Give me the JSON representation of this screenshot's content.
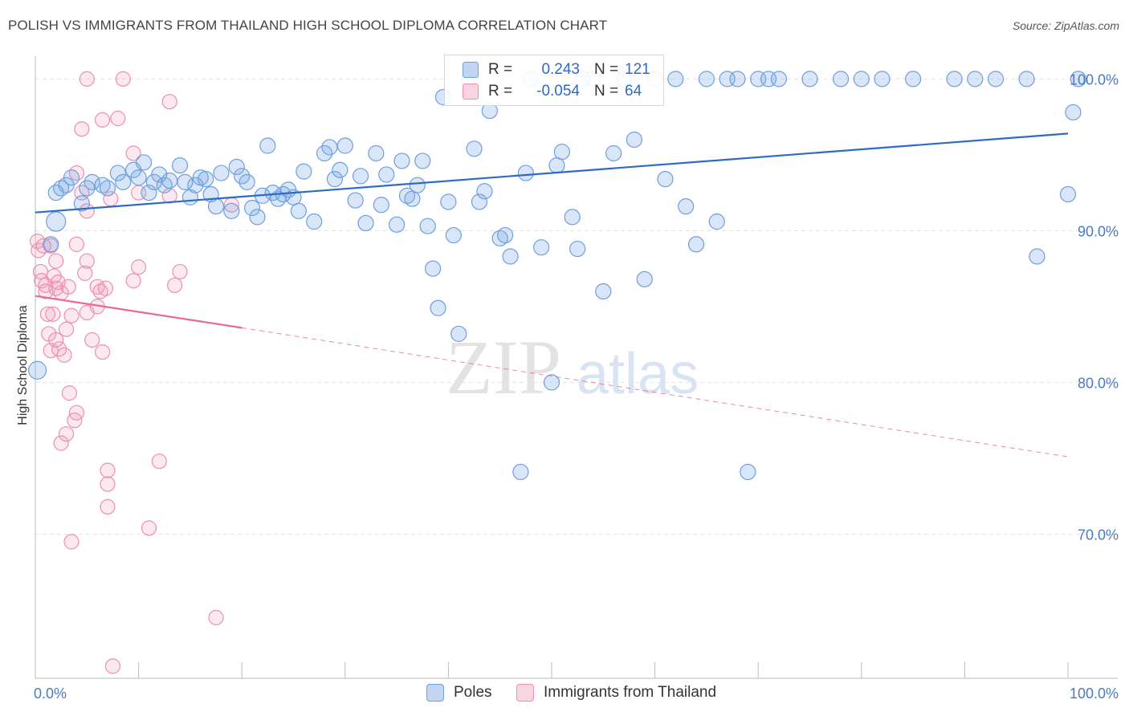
{
  "title": "POLISH VS IMMIGRANTS FROM THAILAND HIGH SCHOOL DIPLOMA CORRELATION CHART",
  "source": "Source: ZipAtlas.com",
  "watermark": {
    "zip": "ZIP",
    "atlas": "atlas"
  },
  "colors": {
    "poles_fill": "rgba(120,165,230,0.28)",
    "poles_stroke": "#6e9fdd",
    "poles_line": "#2f6ac4",
    "thai_fill": "rgba(240,150,180,0.22)",
    "thai_stroke": "#ec8fb0",
    "thai_line": "#e5699a",
    "tick_label": "#4a7cc1",
    "grid": "#e3e3e3"
  },
  "legend": {
    "rows": [
      {
        "r_label": "R =",
        "r_value": "0.243",
        "n_label": "N =",
        "n_value": "121"
      },
      {
        "r_label": "R =",
        "r_value": "-0.054",
        "n_label": "N =",
        "n_value": "64"
      }
    ]
  },
  "chart_data": {
    "type": "scatter",
    "title": "POLISH VS IMMIGRANTS FROM THAILAND HIGH SCHOOL DIPLOMA CORRELATION CHART",
    "ylabel": "High School Diploma",
    "xlabel": "",
    "xlim": [
      0,
      100
    ],
    "ylim": [
      60.5,
      101.5
    ],
    "y_ticks": [
      70,
      80,
      90,
      100
    ],
    "y_tick_labels": [
      "70.0%",
      "80.0%",
      "90.0%",
      "100.0%"
    ],
    "x_tick_labels": [
      "0.0%",
      "100.0%"
    ],
    "legend_position": "top-center",
    "grid": true,
    "series": [
      {
        "name": "Poles",
        "trend": {
          "x": [
            0,
            100
          ],
          "y": [
            91.2,
            96.4
          ]
        },
        "points": [
          [
            0.2,
            80.8
          ],
          [
            1.5,
            89.1
          ],
          [
            2,
            90.6
          ],
          [
            2,
            92.5
          ],
          [
            2.5,
            92.8
          ],
          [
            3,
            93.0
          ],
          [
            3.5,
            93.5
          ],
          [
            4.5,
            91.8
          ],
          [
            5,
            92.8
          ],
          [
            5.5,
            93.2
          ],
          [
            6.5,
            93.0
          ],
          [
            7,
            92.8
          ],
          [
            8,
            93.8
          ],
          [
            8.5,
            93.2
          ],
          [
            9.5,
            94.0
          ],
          [
            10,
            93.5
          ],
          [
            10.5,
            94.5
          ],
          [
            11,
            92.5
          ],
          [
            11.5,
            93.2
          ],
          [
            12,
            93.7
          ],
          [
            12.5,
            93.0
          ],
          [
            13,
            93.3
          ],
          [
            14,
            94.3
          ],
          [
            14.5,
            93.2
          ],
          [
            15,
            92.2
          ],
          [
            15.5,
            93.0
          ],
          [
            16,
            93.5
          ],
          [
            16.5,
            93.4
          ],
          [
            17,
            92.4
          ],
          [
            17.5,
            91.6
          ],
          [
            18,
            93.8
          ],
          [
            19,
            91.3
          ],
          [
            19.5,
            94.2
          ],
          [
            20,
            93.6
          ],
          [
            20.5,
            93.2
          ],
          [
            21,
            91.5
          ],
          [
            21.5,
            90.9
          ],
          [
            22,
            92.3
          ],
          [
            22.5,
            95.6
          ],
          [
            23,
            92.5
          ],
          [
            23.5,
            92.1
          ],
          [
            24,
            92.4
          ],
          [
            24.5,
            92.7
          ],
          [
            25,
            92.2
          ],
          [
            25.5,
            91.3
          ],
          [
            26,
            93.9
          ],
          [
            27,
            90.6
          ],
          [
            28,
            95.1
          ],
          [
            28.5,
            95.5
          ],
          [
            29,
            93.4
          ],
          [
            29.5,
            94.0
          ],
          [
            30,
            95.6
          ],
          [
            31,
            92.0
          ],
          [
            31.5,
            93.6
          ],
          [
            32,
            90.5
          ],
          [
            33,
            95.1
          ],
          [
            33.5,
            91.7
          ],
          [
            34,
            93.7
          ],
          [
            35,
            90.4
          ],
          [
            35.5,
            94.6
          ],
          [
            36,
            92.3
          ],
          [
            36.5,
            92.1
          ],
          [
            37,
            93.0
          ],
          [
            37.5,
            94.6
          ],
          [
            38,
            90.3
          ],
          [
            38.5,
            87.5
          ],
          [
            39,
            84.9
          ],
          [
            39.5,
            98.8
          ],
          [
            40,
            91.9
          ],
          [
            40.5,
            89.7
          ],
          [
            41,
            83.2
          ],
          [
            42,
            100.0
          ],
          [
            42.5,
            95.4
          ],
          [
            43,
            91.9
          ],
          [
            43.5,
            92.6
          ],
          [
            44,
            97.9
          ],
          [
            45,
            89.5
          ],
          [
            45.5,
            89.7
          ],
          [
            46,
            88.3
          ],
          [
            47,
            74.1
          ],
          [
            47.5,
            93.8
          ],
          [
            48,
            100.0
          ],
          [
            49,
            88.9
          ],
          [
            50,
            80.0
          ],
          [
            50.5,
            94.3
          ],
          [
            51,
            95.2
          ],
          [
            52,
            90.9
          ],
          [
            52.5,
            88.8
          ],
          [
            53,
            100.0
          ],
          [
            54,
            100.0
          ],
          [
            55,
            86.0
          ],
          [
            56,
            95.1
          ],
          [
            57,
            100.0
          ],
          [
            58,
            96.0
          ],
          [
            59,
            86.8
          ],
          [
            60,
            100.0
          ],
          [
            61,
            93.4
          ],
          [
            62,
            100.0
          ],
          [
            63,
            91.6
          ],
          [
            64,
            89.1
          ],
          [
            65,
            100.0
          ],
          [
            66,
            90.6
          ],
          [
            67,
            100.0
          ],
          [
            68,
            100.0
          ],
          [
            69,
            74.1
          ],
          [
            70,
            100.0
          ],
          [
            71,
            100.0
          ],
          [
            72,
            100.0
          ],
          [
            75,
            100.0
          ],
          [
            78,
            100.0
          ],
          [
            80,
            100.0
          ],
          [
            82,
            100.0
          ],
          [
            85,
            100.0
          ],
          [
            89,
            100.0
          ],
          [
            91,
            100.0
          ],
          [
            93,
            100.0
          ],
          [
            96,
            100.0
          ],
          [
            97,
            88.3
          ],
          [
            100,
            92.4
          ],
          [
            100.5,
            97.8
          ],
          [
            101,
            100.0
          ]
        ]
      },
      {
        "name": "Immigrants from Thailand",
        "trend": {
          "x": [
            0,
            20
          ],
          "y": [
            85.7,
            83.6
          ]
        },
        "trend_dashed": {
          "x": [
            20,
            100
          ],
          "y": [
            83.6,
            75.1
          ]
        },
        "points": [
          [
            0.2,
            89.3
          ],
          [
            0.3,
            88.7
          ],
          [
            0.5,
            87.3
          ],
          [
            0.6,
            86.7
          ],
          [
            0.8,
            89.0
          ],
          [
            1,
            86.4
          ],
          [
            1,
            86.0
          ],
          [
            1.2,
            84.5
          ],
          [
            1.3,
            83.2
          ],
          [
            1.5,
            82.1
          ],
          [
            1.5,
            89.0
          ],
          [
            1.8,
            87.0
          ],
          [
            2,
            88.0
          ],
          [
            2,
            86.2
          ],
          [
            2,
            82.8
          ],
          [
            2.3,
            82.2
          ],
          [
            2.5,
            76.0
          ],
          [
            2.5,
            85.9
          ],
          [
            2.8,
            81.8
          ],
          [
            3,
            76.6
          ],
          [
            3,
            83.5
          ],
          [
            3.3,
            79.3
          ],
          [
            3.5,
            69.5
          ],
          [
            3.5,
            84.4
          ],
          [
            3.8,
            77.5
          ],
          [
            4,
            78.0
          ],
          [
            4,
            89.1
          ],
          [
            4,
            93.8
          ],
          [
            4.5,
            92.5
          ],
          [
            4.5,
            96.7
          ],
          [
            5,
            91.3
          ],
          [
            5,
            88.0
          ],
          [
            5,
            84.6
          ],
          [
            5,
            100.0
          ],
          [
            5.5,
            82.8
          ],
          [
            6,
            86.3
          ],
          [
            6,
            85.0
          ],
          [
            6.3,
            86.0
          ],
          [
            6.5,
            82.0
          ],
          [
            6.5,
            97.3
          ],
          [
            7,
            74.2
          ],
          [
            7,
            73.3
          ],
          [
            7,
            71.8
          ],
          [
            7.3,
            92.1
          ],
          [
            7.5,
            61.3
          ],
          [
            8,
            97.4
          ],
          [
            8.5,
            100.0
          ],
          [
            9.5,
            95.1
          ],
          [
            9.5,
            86.7
          ],
          [
            10,
            92.5
          ],
          [
            10,
            87.6
          ],
          [
            11,
            70.4
          ],
          [
            12,
            74.8
          ],
          [
            13,
            92.3
          ],
          [
            13,
            98.5
          ],
          [
            13.5,
            86.4
          ],
          [
            14,
            87.3
          ],
          [
            17.5,
            64.5
          ],
          [
            19,
            91.7
          ],
          [
            2.2,
            86.6
          ],
          [
            3.2,
            86.3
          ],
          [
            1.7,
            84.5
          ],
          [
            4.8,
            87.2
          ],
          [
            6.8,
            86.2
          ]
        ]
      }
    ]
  },
  "bottom_legend": [
    {
      "label": "Poles"
    },
    {
      "label": "Immigrants from Thailand"
    }
  ]
}
